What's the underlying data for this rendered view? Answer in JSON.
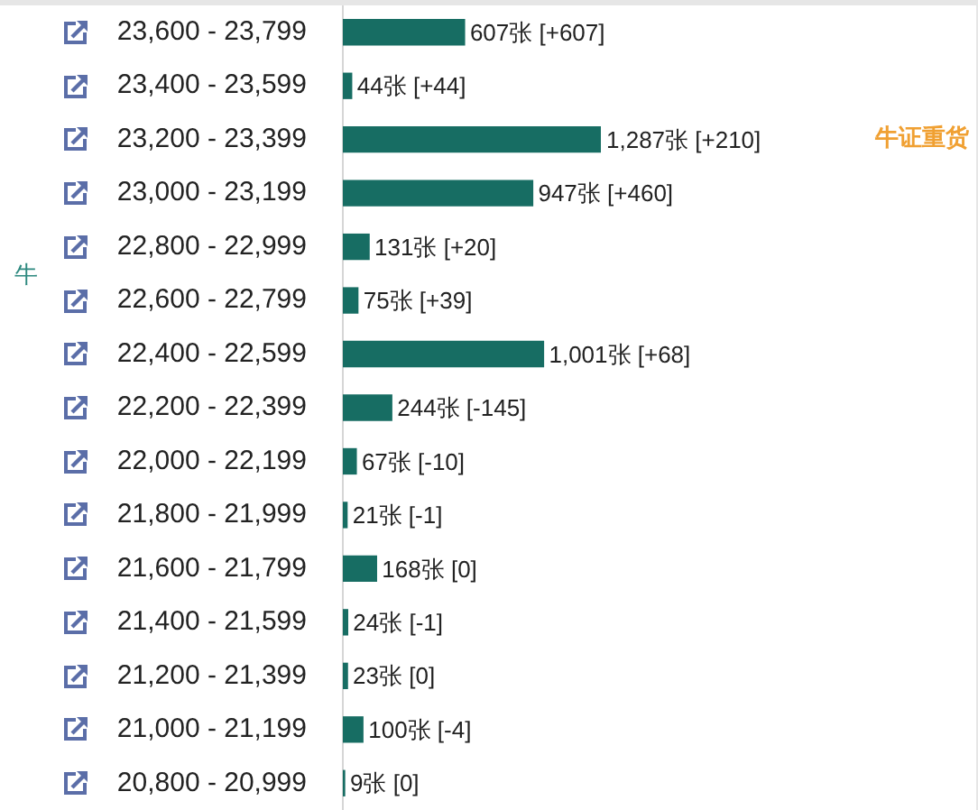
{
  "chart_data": {
    "type": "bar",
    "orientation": "horizontal",
    "ylabel": "牛",
    "categories": [
      "23,600 - 23,799",
      "23,400 - 23,599",
      "23,200 - 23,399",
      "23,000 - 23,199",
      "22,800 - 22,999",
      "22,600 - 22,799",
      "22,400 - 22,599",
      "22,200 - 22,399",
      "22,000 - 22,199",
      "21,800 - 21,999",
      "21,600 - 21,799",
      "21,400 - 21,599",
      "21,200 - 21,399",
      "21,000 - 21,199",
      "20,800 - 20,999"
    ],
    "values": [
      607,
      44,
      1287,
      947,
      131,
      75,
      1001,
      244,
      67,
      21,
      168,
      24,
      23,
      100,
      9
    ],
    "color": "#176d63",
    "value_labels": [
      "607张 [+607]",
      "44张 [+44]",
      "1,287张 [+210]",
      "947张 [+460]",
      "131张 [+20]",
      "75张 [+39]",
      "1,001张 [+68]",
      "244张 [-145]",
      "67张 [-10]",
      "21张 [-1]",
      "168张 [0]",
      "24张 [-1]",
      "23张 [0]",
      "100张 [-4]",
      "9张 [0]"
    ],
    "annotations": [
      "牛证重货"
    ],
    "tick_labels": "y",
    "grid": false,
    "legend": false
  }
}
